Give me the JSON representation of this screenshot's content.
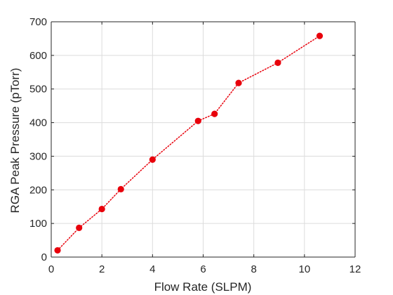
{
  "chart_data": {
    "type": "line",
    "title": "",
    "xlabel": "Flow Rate (SLPM)",
    "ylabel": "RGA Peak Pressure (pTorr)",
    "xlim": [
      0,
      12
    ],
    "ylim": [
      0,
      700
    ],
    "xticks": [
      0,
      2,
      4,
      6,
      8,
      10,
      12
    ],
    "yticks": [
      0,
      100,
      200,
      300,
      400,
      500,
      600,
      700
    ],
    "grid": true,
    "legend": "none",
    "line_style": "dotted",
    "marker": "filled-circle",
    "color": "#e8000b",
    "series": [
      {
        "x": [
          0.25,
          1.1,
          2.0,
          2.75,
          4.0,
          5.8,
          6.45,
          7.4,
          8.95,
          10.6
        ],
        "y": [
          20,
          87,
          143,
          202,
          290,
          405,
          426,
          518,
          578,
          658
        ]
      }
    ]
  }
}
